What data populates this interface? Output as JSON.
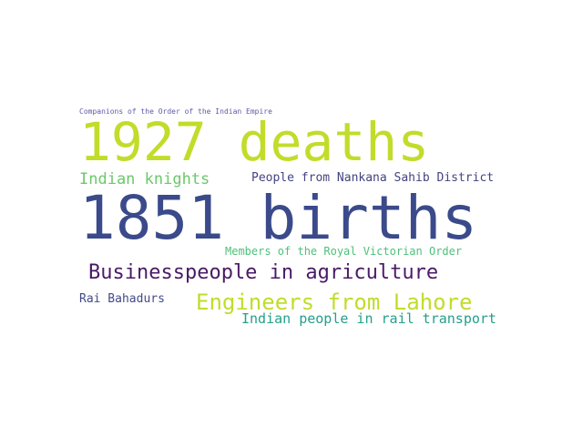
{
  "words": {
    "companions": {
      "text": "Companions of the Order of the Indian Empire",
      "color": "#5e5aa8"
    },
    "deaths_1927": {
      "text": "1927 deaths",
      "color": "#c2dc2a"
    },
    "indian_knights": {
      "text": "Indian knights",
      "color": "#6cc86a"
    },
    "nankana": {
      "text": "People from Nankana Sahib District",
      "color": "#424480"
    },
    "births_1851": {
      "text": "1851 births",
      "color": "#3b4a8a"
    },
    "royal_victorian": {
      "text": "Members of the Royal Victorian Order",
      "color": "#4fc07a"
    },
    "businesspeople": {
      "text": "Businesspeople in agriculture",
      "color": "#4a1a66"
    },
    "rai_bahadurs": {
      "text": "Rai Bahadurs",
      "color": "#424a88"
    },
    "engineers_lahore": {
      "text": "Engineers from Lahore",
      "color": "#c2dc2a"
    },
    "rail_transport": {
      "text": "Indian people in rail transport",
      "color": "#23a08a"
    }
  }
}
